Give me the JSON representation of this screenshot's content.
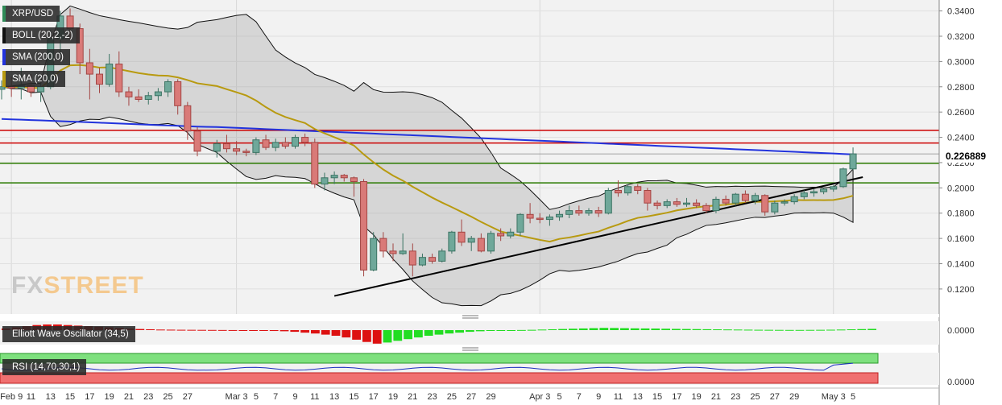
{
  "chart_data": {
    "type": "candlestick",
    "symbol": "XRP/USD",
    "indicators": {
      "bollinger": {
        "label": "BOLL (20,2,-2)",
        "color": "#111111"
      },
      "sma200": {
        "label": "SMA (200,0)",
        "color": "#2233dd"
      },
      "sma20": {
        "label": "SMA (20,0)",
        "color": "#b89a10"
      }
    },
    "y_ticks": [
      "0.3400",
      "0.3200",
      "0.3000",
      "0.2800",
      "0.2600",
      "0.2400",
      "0.2200",
      "0.2000",
      "0.1800",
      "0.1600",
      "0.1400",
      "0.1200"
    ],
    "ylim": [
      0.108,
      0.348
    ],
    "current_price": "0.226889",
    "x_ticks": [
      "Feb 9",
      "11",
      "13",
      "15",
      "17",
      "19",
      "21",
      "23",
      "25",
      "27",
      "Mar 3",
      "5",
      "7",
      "9",
      "11",
      "13",
      "15",
      "17",
      "19",
      "21",
      "23",
      "25",
      "27",
      "29",
      "Apr 3",
      "5",
      "7",
      "9",
      "11",
      "13",
      "15",
      "17",
      "19",
      "21",
      "23",
      "25",
      "27",
      "29",
      "May 3",
      "5"
    ],
    "horizontal_levels": [
      {
        "value": 0.2455,
        "color": "#cc0000"
      },
      {
        "value": 0.2355,
        "color": "#cc0000"
      },
      {
        "value": 0.2195,
        "color": "#2a7a00"
      },
      {
        "value": 0.204,
        "color": "#2a7a00"
      }
    ],
    "trendline": {
      "from": [
        "Mar 13",
        0.1145
      ],
      "to": [
        "May 6",
        0.2085
      ],
      "color": "#000000"
    },
    "candles": [
      {
        "d": "Feb 8",
        "o": 0.278,
        "h": 0.285,
        "l": 0.27,
        "c": 0.28
      },
      {
        "d": "Feb 9",
        "o": 0.28,
        "h": 0.288,
        "l": 0.272,
        "c": 0.279
      },
      {
        "d": "Feb 10",
        "o": 0.279,
        "h": 0.295,
        "l": 0.27,
        "c": 0.281
      },
      {
        "d": "Feb 11",
        "o": 0.281,
        "h": 0.29,
        "l": 0.272,
        "c": 0.276
      },
      {
        "d": "Feb 12",
        "o": 0.276,
        "h": 0.283,
        "l": 0.268,
        "c": 0.28
      },
      {
        "d": "Feb 13",
        "o": 0.28,
        "h": 0.325,
        "l": 0.278,
        "c": 0.318
      },
      {
        "d": "Feb 14",
        "o": 0.318,
        "h": 0.34,
        "l": 0.305,
        "c": 0.336
      },
      {
        "d": "Feb 15",
        "o": 0.336,
        "h": 0.342,
        "l": 0.318,
        "c": 0.326
      },
      {
        "d": "Feb 16",
        "o": 0.326,
        "h": 0.33,
        "l": 0.29,
        "c": 0.299
      },
      {
        "d": "Feb 17",
        "o": 0.299,
        "h": 0.31,
        "l": 0.27,
        "c": 0.29
      },
      {
        "d": "Feb 18",
        "o": 0.29,
        "h": 0.295,
        "l": 0.275,
        "c": 0.282
      },
      {
        "d": "Feb 19",
        "o": 0.282,
        "h": 0.306,
        "l": 0.28,
        "c": 0.298
      },
      {
        "d": "Feb 20",
        "o": 0.298,
        "h": 0.308,
        "l": 0.272,
        "c": 0.276
      },
      {
        "d": "Feb 21",
        "o": 0.276,
        "h": 0.28,
        "l": 0.265,
        "c": 0.272
      },
      {
        "d": "Feb 22",
        "o": 0.272,
        "h": 0.278,
        "l": 0.268,
        "c": 0.27
      },
      {
        "d": "Feb 23",
        "o": 0.27,
        "h": 0.276,
        "l": 0.266,
        "c": 0.273
      },
      {
        "d": "Feb 24",
        "o": 0.273,
        "h": 0.279,
        "l": 0.269,
        "c": 0.276
      },
      {
        "d": "Feb 25",
        "o": 0.276,
        "h": 0.286,
        "l": 0.272,
        "c": 0.284
      },
      {
        "d": "Feb 26",
        "o": 0.284,
        "h": 0.286,
        "l": 0.258,
        "c": 0.265
      },
      {
        "d": "Feb 27",
        "o": 0.265,
        "h": 0.268,
        "l": 0.238,
        "c": 0.245
      },
      {
        "d": "Feb 28",
        "o": 0.245,
        "h": 0.248,
        "l": 0.225,
        "c": 0.229
      },
      {
        "d": "Mar 1",
        "o": 0.229,
        "h": 0.238,
        "l": 0.224,
        "c": 0.235
      },
      {
        "d": "Mar 2",
        "o": 0.235,
        "h": 0.242,
        "l": 0.228,
        "c": 0.231
      },
      {
        "d": "Mar 3",
        "o": 0.231,
        "h": 0.237,
        "l": 0.226,
        "c": 0.229
      },
      {
        "d": "Mar 4",
        "o": 0.229,
        "h": 0.231,
        "l": 0.225,
        "c": 0.228
      },
      {
        "d": "Mar 5",
        "o": 0.228,
        "h": 0.24,
        "l": 0.226,
        "c": 0.238
      },
      {
        "d": "Mar 6",
        "o": 0.238,
        "h": 0.242,
        "l": 0.23,
        "c": 0.232
      },
      {
        "d": "Mar 7",
        "o": 0.232,
        "h": 0.239,
        "l": 0.229,
        "c": 0.236
      },
      {
        "d": "Mar 8",
        "o": 0.236,
        "h": 0.24,
        "l": 0.231,
        "c": 0.233
      },
      {
        "d": "Mar 9",
        "o": 0.233,
        "h": 0.242,
        "l": 0.231,
        "c": 0.24
      },
      {
        "d": "Mar 10",
        "o": 0.24,
        "h": 0.243,
        "l": 0.233,
        "c": 0.236
      },
      {
        "d": "Mar 11",
        "o": 0.236,
        "h": 0.239,
        "l": 0.2,
        "c": 0.203
      },
      {
        "d": "Mar 12",
        "o": 0.203,
        "h": 0.212,
        "l": 0.198,
        "c": 0.208
      },
      {
        "d": "Mar 13",
        "o": 0.208,
        "h": 0.213,
        "l": 0.203,
        "c": 0.21
      },
      {
        "d": "Mar 14",
        "o": 0.21,
        "h": 0.211,
        "l": 0.205,
        "c": 0.208
      },
      {
        "d": "Mar 15",
        "o": 0.208,
        "h": 0.209,
        "l": 0.193,
        "c": 0.205
      },
      {
        "d": "Mar 16",
        "o": 0.205,
        "h": 0.207,
        "l": 0.13,
        "c": 0.135
      },
      {
        "d": "Mar 17",
        "o": 0.135,
        "h": 0.165,
        "l": 0.134,
        "c": 0.16
      },
      {
        "d": "Mar 18",
        "o": 0.16,
        "h": 0.165,
        "l": 0.145,
        "c": 0.15
      },
      {
        "d": "Mar 19",
        "o": 0.15,
        "h": 0.156,
        "l": 0.142,
        "c": 0.148
      },
      {
        "d": "Mar 20",
        "o": 0.148,
        "h": 0.164,
        "l": 0.147,
        "c": 0.15
      },
      {
        "d": "Mar 21",
        "o": 0.15,
        "h": 0.156,
        "l": 0.13,
        "c": 0.139
      },
      {
        "d": "Mar 22",
        "o": 0.139,
        "h": 0.148,
        "l": 0.138,
        "c": 0.145
      },
      {
        "d": "Mar 23",
        "o": 0.145,
        "h": 0.148,
        "l": 0.14,
        "c": 0.142
      },
      {
        "d": "Mar 24",
        "o": 0.142,
        "h": 0.152,
        "l": 0.141,
        "c": 0.15
      },
      {
        "d": "Mar 25",
        "o": 0.15,
        "h": 0.166,
        "l": 0.148,
        "c": 0.165
      },
      {
        "d": "Mar 26",
        "o": 0.165,
        "h": 0.175,
        "l": 0.154,
        "c": 0.157
      },
      {
        "d": "Mar 27",
        "o": 0.157,
        "h": 0.162,
        "l": 0.15,
        "c": 0.16
      },
      {
        "d": "Mar 28",
        "o": 0.16,
        "h": 0.164,
        "l": 0.149,
        "c": 0.15
      },
      {
        "d": "Mar 29",
        "o": 0.15,
        "h": 0.166,
        "l": 0.148,
        "c": 0.164
      },
      {
        "d": "Mar 30",
        "o": 0.164,
        "h": 0.168,
        "l": 0.158,
        "c": 0.162
      },
      {
        "d": "Mar 31",
        "o": 0.162,
        "h": 0.168,
        "l": 0.16,
        "c": 0.165
      },
      {
        "d": "Apr 1",
        "o": 0.165,
        "h": 0.18,
        "l": 0.162,
        "c": 0.179
      },
      {
        "d": "Apr 2",
        "o": 0.179,
        "h": 0.188,
        "l": 0.172,
        "c": 0.176
      },
      {
        "d": "Apr 3",
        "o": 0.176,
        "h": 0.18,
        "l": 0.172,
        "c": 0.175
      },
      {
        "d": "Apr 4",
        "o": 0.175,
        "h": 0.179,
        "l": 0.17,
        "c": 0.177
      },
      {
        "d": "Apr 5",
        "o": 0.177,
        "h": 0.182,
        "l": 0.174,
        "c": 0.179
      },
      {
        "d": "Apr 6",
        "o": 0.179,
        "h": 0.186,
        "l": 0.176,
        "c": 0.182
      },
      {
        "d": "Apr 7",
        "o": 0.182,
        "h": 0.186,
        "l": 0.178,
        "c": 0.18
      },
      {
        "d": "Apr 8",
        "o": 0.18,
        "h": 0.184,
        "l": 0.178,
        "c": 0.182
      },
      {
        "d": "Apr 9",
        "o": 0.182,
        "h": 0.185,
        "l": 0.177,
        "c": 0.18
      },
      {
        "d": "Apr 10",
        "o": 0.18,
        "h": 0.2,
        "l": 0.179,
        "c": 0.198
      },
      {
        "d": "Apr 11",
        "o": 0.198,
        "h": 0.206,
        "l": 0.193,
        "c": 0.196
      },
      {
        "d": "Apr 12",
        "o": 0.196,
        "h": 0.203,
        "l": 0.194,
        "c": 0.201
      },
      {
        "d": "Apr 13",
        "o": 0.201,
        "h": 0.203,
        "l": 0.195,
        "c": 0.198
      },
      {
        "d": "Apr 14",
        "o": 0.198,
        "h": 0.2,
        "l": 0.182,
        "c": 0.188
      },
      {
        "d": "Apr 15",
        "o": 0.188,
        "h": 0.19,
        "l": 0.183,
        "c": 0.186
      },
      {
        "d": "Apr 16",
        "o": 0.186,
        "h": 0.191,
        "l": 0.184,
        "c": 0.189
      },
      {
        "d": "Apr 17",
        "o": 0.189,
        "h": 0.192,
        "l": 0.185,
        "c": 0.187
      },
      {
        "d": "Apr 18",
        "o": 0.187,
        "h": 0.192,
        "l": 0.185,
        "c": 0.188
      },
      {
        "d": "Apr 19",
        "o": 0.188,
        "h": 0.191,
        "l": 0.184,
        "c": 0.186
      },
      {
        "d": "Apr 20",
        "o": 0.186,
        "h": 0.188,
        "l": 0.18,
        "c": 0.182
      },
      {
        "d": "Apr 21",
        "o": 0.182,
        "h": 0.193,
        "l": 0.18,
        "c": 0.191
      },
      {
        "d": "Apr 22",
        "o": 0.191,
        "h": 0.194,
        "l": 0.186,
        "c": 0.188
      },
      {
        "d": "Apr 23",
        "o": 0.188,
        "h": 0.196,
        "l": 0.186,
        "c": 0.195
      },
      {
        "d": "Apr 24",
        "o": 0.195,
        "h": 0.198,
        "l": 0.188,
        "c": 0.19
      },
      {
        "d": "Apr 25",
        "o": 0.19,
        "h": 0.196,
        "l": 0.187,
        "c": 0.194
      },
      {
        "d": "Apr 26",
        "o": 0.194,
        "h": 0.195,
        "l": 0.178,
        "c": 0.181
      },
      {
        "d": "Apr 27",
        "o": 0.181,
        "h": 0.19,
        "l": 0.179,
        "c": 0.188
      },
      {
        "d": "Apr 28",
        "o": 0.188,
        "h": 0.191,
        "l": 0.186,
        "c": 0.189
      },
      {
        "d": "Apr 29",
        "o": 0.189,
        "h": 0.195,
        "l": 0.187,
        "c": 0.193
      },
      {
        "d": "Apr 30",
        "o": 0.193,
        "h": 0.198,
        "l": 0.191,
        "c": 0.196
      },
      {
        "d": "May 1",
        "o": 0.196,
        "h": 0.199,
        "l": 0.193,
        "c": 0.197
      },
      {
        "d": "May 2",
        "o": 0.197,
        "h": 0.2,
        "l": 0.195,
        "c": 0.199
      },
      {
        "d": "May 3",
        "o": 0.199,
        "h": 0.202,
        "l": 0.197,
        "c": 0.201
      },
      {
        "d": "May 4",
        "o": 0.201,
        "h": 0.216,
        "l": 0.2,
        "c": 0.215
      },
      {
        "d": "May 5",
        "o": 0.215,
        "h": 0.232,
        "l": 0.214,
        "c": 0.2269
      }
    ],
    "oscillator": {
      "label": "Elliott Wave Oscillator (34,5)",
      "tick": "0.0000",
      "bars": [
        0.3,
        0.5,
        0.7,
        0.9,
        1.0,
        1.0,
        0.9,
        0.8,
        0.7,
        0.6,
        0.5,
        0.4,
        0.3,
        0.2,
        0.15,
        0.1,
        0.08,
        0.06,
        0.05,
        0.04,
        0.03,
        0.02,
        0.01,
        -0.02,
        -0.05,
        -0.1,
        -0.15,
        -0.2,
        -0.3,
        -0.45,
        -0.6,
        -0.8,
        -1.0,
        -1.3,
        -1.7,
        -2.1,
        -2.4,
        -2.2,
        -1.9,
        -1.6,
        -1.3,
        -1.0,
        -0.8,
        -0.6,
        -0.45,
        -0.3,
        -0.2,
        -0.12,
        -0.06,
        -0.02,
        0.02,
        0.05,
        0.1,
        0.15,
        0.2,
        0.25,
        0.3,
        0.35,
        0.4,
        0.38,
        0.35,
        0.32,
        0.3,
        0.28,
        0.25,
        0.22,
        0.2,
        0.18,
        0.16,
        0.14,
        0.12,
        0.1,
        0.08,
        0.06,
        0.05,
        0.04,
        0.03,
        0.03,
        0.04,
        0.05,
        0.07,
        0.1,
        0.14,
        0.18,
        0.22
      ]
    },
    "rsi": {
      "label": "RSI (14,70,30,1)",
      "tick": "0.0000",
      "upper": 70,
      "lower": 30
    }
  }
}
